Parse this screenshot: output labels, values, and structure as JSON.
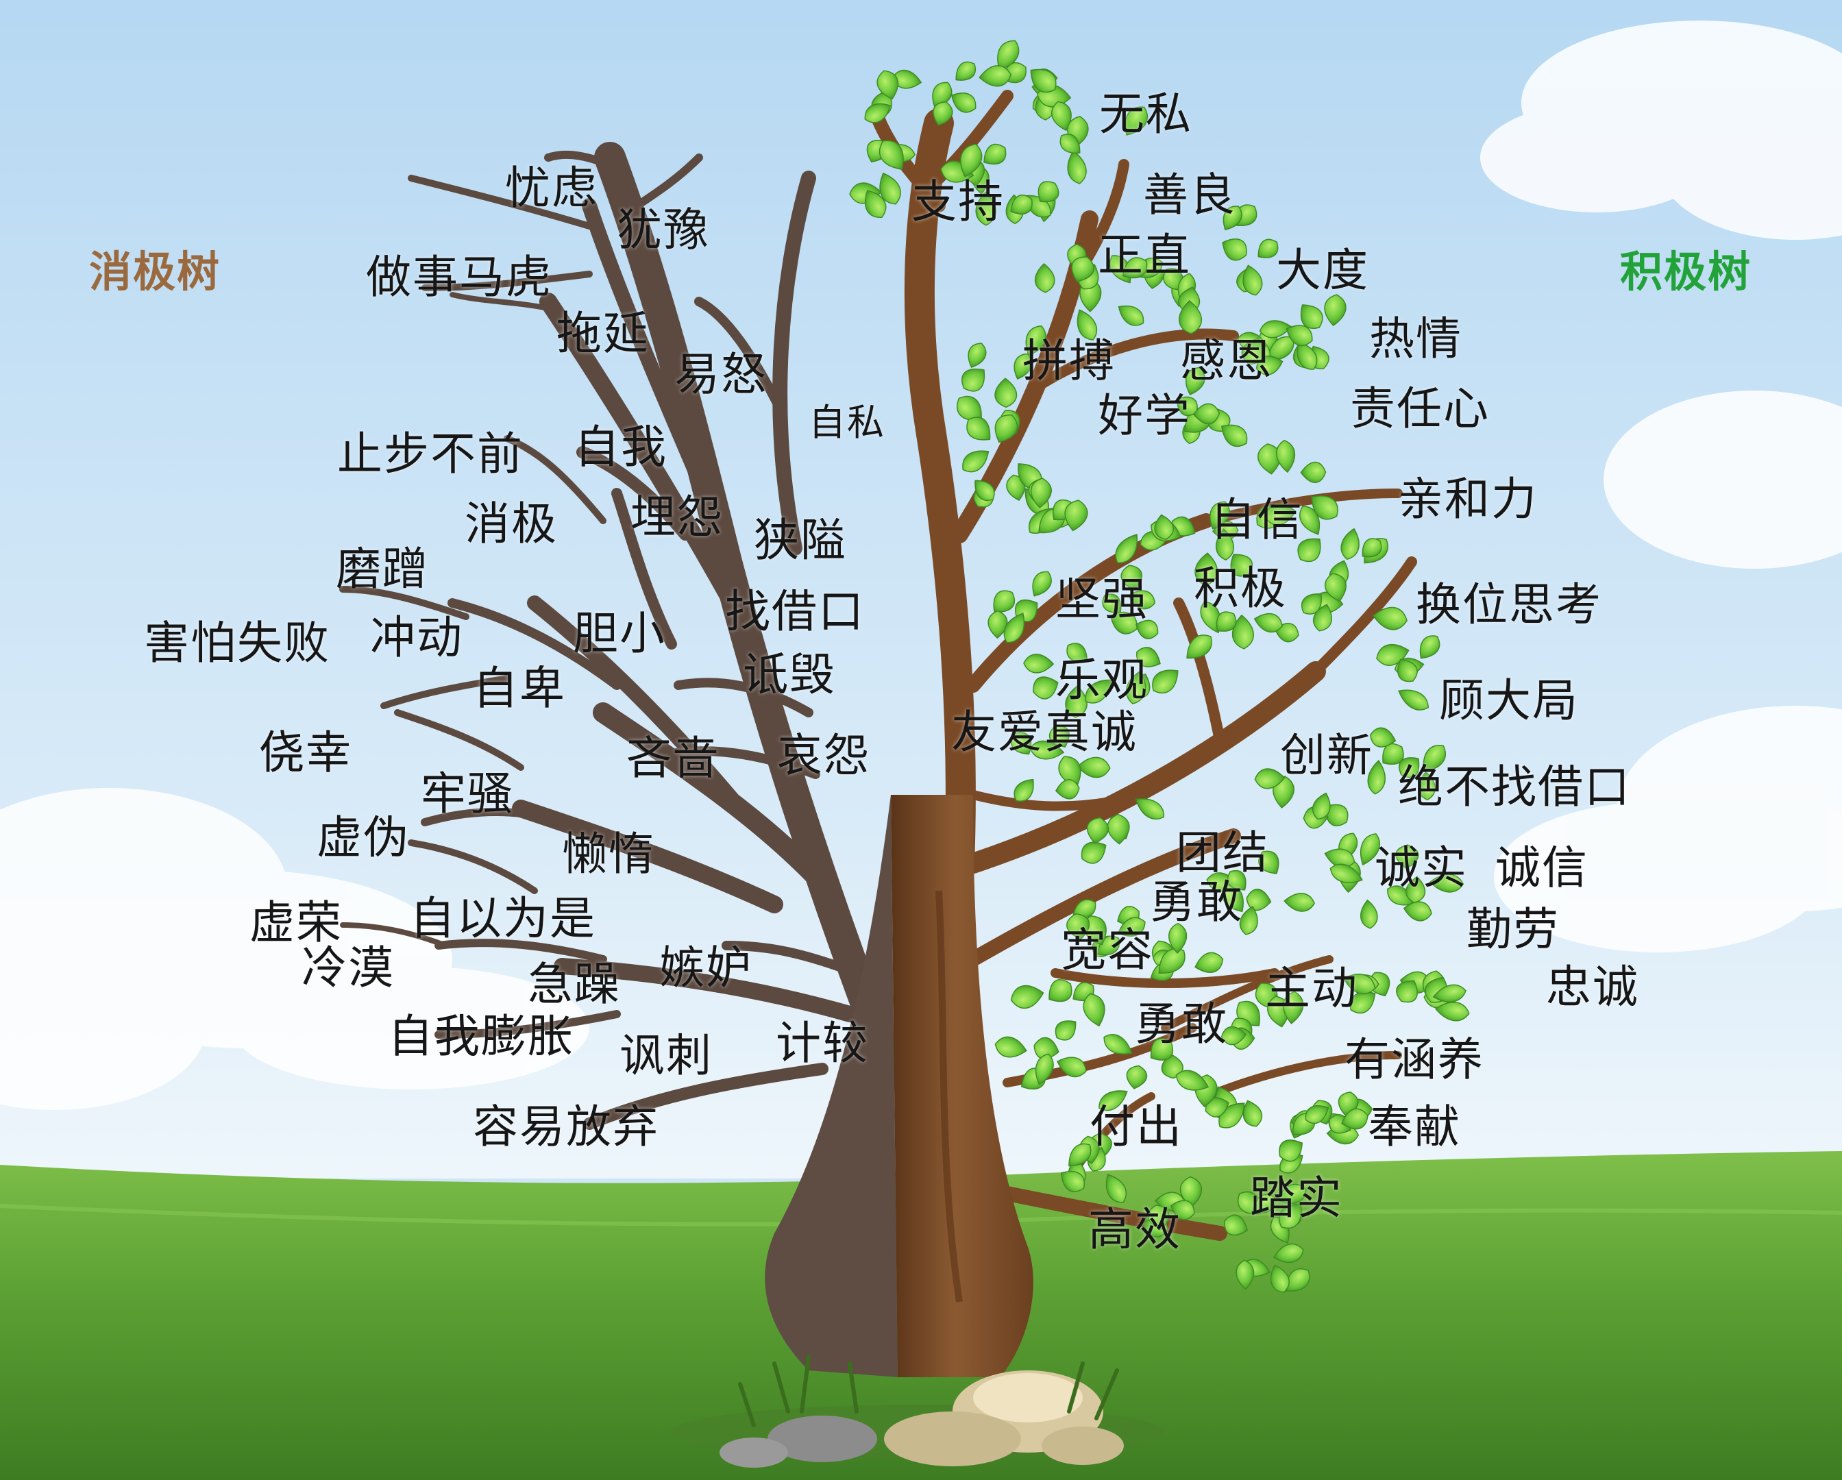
{
  "headings": {
    "negative": {
      "label": "消极树",
      "color": "#9a6a3e"
    },
    "positive": {
      "label": "积极树",
      "color": "#21a33a"
    }
  },
  "colors": {
    "sky_top": "#bcdcf3",
    "sky_bottom": "#e8f3fb",
    "grass": "#5ea335",
    "dead_wood": "#5c4a40",
    "live_wood": "#7a4a26",
    "leaf": "#6cc93a"
  },
  "negative_words": [
    "忧虑",
    "犹豫",
    "做事马虎",
    "拖延",
    "易怒",
    "自私",
    "止步不前",
    "自我",
    "消极",
    "埋怨",
    "狭隘",
    "磨蹭",
    "找借口",
    "害怕失败",
    "冲动",
    "胆小",
    "自卑",
    "诋毁",
    "侥幸",
    "吝啬",
    "哀怨",
    "牢骚",
    "虚伪",
    "懒惰",
    "虚荣",
    "自以为是",
    "冷漠",
    "急躁",
    "嫉妒",
    "自我膨胀",
    "讽刺",
    "计较",
    "容易放弃"
  ],
  "positive_words": [
    "无私",
    "支持",
    "善良",
    "正直",
    "大度",
    "热情",
    "拼搏",
    "感恩",
    "好学",
    "责任心",
    "亲和力",
    "自信",
    "坚强",
    "积极",
    "换位思考",
    "乐观",
    "友爱真诚",
    "顾大局",
    "创新",
    "绝不找借口",
    "团结",
    "诚实",
    "诚信",
    "勇敢",
    "勤劳",
    "宽容",
    "主动",
    "忠诚",
    "勇敢",
    "有涵养",
    "付出",
    "奉献",
    "踏实",
    "高效"
  ]
}
